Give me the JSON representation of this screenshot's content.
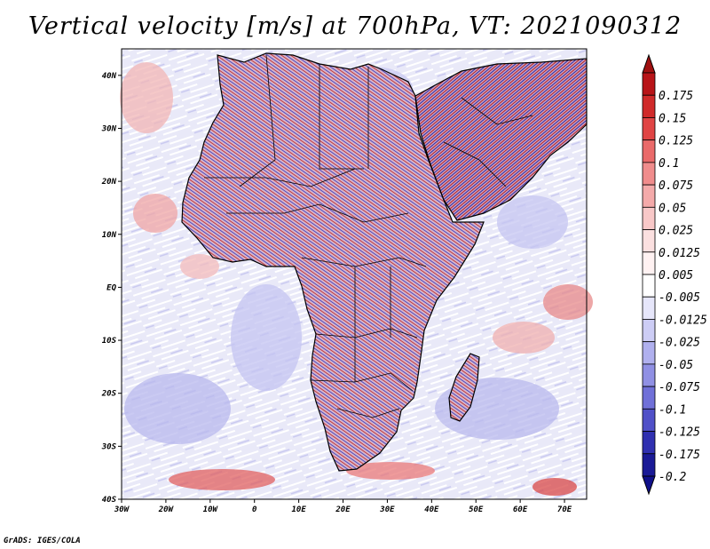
{
  "title": "Vertical velocity [m/s] at 700hPa, VT: 2021090312",
  "credit": "GrADS: IGES/COLA",
  "map": {
    "lon_range": [
      -30,
      75
    ],
    "lat_range": [
      -40,
      45
    ],
    "lon_ticks": [
      {
        "value": -30,
        "label": "30W"
      },
      {
        "value": -20,
        "label": "20W"
      },
      {
        "value": -10,
        "label": "10W"
      },
      {
        "value": 0,
        "label": "0"
      },
      {
        "value": 10,
        "label": "10E"
      },
      {
        "value": 20,
        "label": "20E"
      },
      {
        "value": 30,
        "label": "30E"
      },
      {
        "value": 40,
        "label": "40E"
      },
      {
        "value": 50,
        "label": "50E"
      },
      {
        "value": 60,
        "label": "60E"
      },
      {
        "value": 70,
        "label": "70E"
      }
    ],
    "lat_ticks": [
      {
        "value": 40,
        "label": "40N"
      },
      {
        "value": 30,
        "label": "30N"
      },
      {
        "value": 20,
        "label": "20N"
      },
      {
        "value": 10,
        "label": "10N"
      },
      {
        "value": 0,
        "label": "EQ"
      },
      {
        "value": -10,
        "label": "10S"
      },
      {
        "value": -20,
        "label": "20S"
      },
      {
        "value": -30,
        "label": "30S"
      },
      {
        "value": -40,
        "label": "40S"
      }
    ]
  },
  "colorbar": {
    "levels": [
      {
        "label": "0.175",
        "color": "#b81418"
      },
      {
        "label": "0.15",
        "color": "#d02a2a"
      },
      {
        "label": "0.125",
        "color": "#e04444"
      },
      {
        "label": "0.1",
        "color": "#ea6a6a"
      },
      {
        "label": "0.075",
        "color": "#f08c8c"
      },
      {
        "label": "0.05",
        "color": "#f4aaaa"
      },
      {
        "label": "0.025",
        "color": "#f8c8c8"
      },
      {
        "label": "0.0125",
        "color": "#fbe0e0"
      },
      {
        "label": "0.005",
        "color": "#fff2f2"
      },
      {
        "label": "-0.005",
        "color": "#ffffff"
      },
      {
        "label": "-0.0125",
        "color": "#e6e6fa"
      },
      {
        "label": "-0.025",
        "color": "#cdcdf5"
      },
      {
        "label": "-0.05",
        "color": "#b0b0ee"
      },
      {
        "label": "-0.075",
        "color": "#9090e4"
      },
      {
        "label": "-0.1",
        "color": "#7070d8"
      },
      {
        "label": "-0.125",
        "color": "#5050c8"
      },
      {
        "label": "-0.175",
        "color": "#3030b0"
      },
      {
        "label": "-0.2",
        "color": "#1a1a96"
      }
    ],
    "top_color": "#a01010",
    "bottom_color": "#10108a"
  }
}
